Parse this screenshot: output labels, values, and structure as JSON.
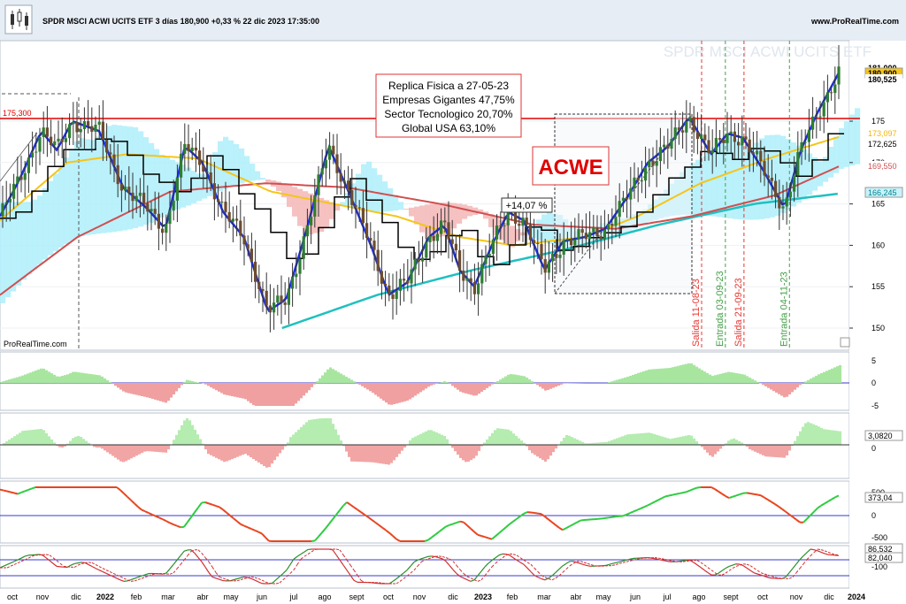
{
  "header": {
    "title": "SPDR MSCI ACWI UCITS ETF 3 días 180,900 +0,33 % 22 dic 2023 17:35:00",
    "site": "www.ProRealTime.com",
    "watermark": "SPDR MSCI ACWI UCITS ETF",
    "footer_brand": "ProRealTime.com"
  },
  "annotations": {
    "info_box": [
      "Replica Fisica a 27-05-23",
      "Empresas Gigantes 47,75%",
      "Sector Tecnologico 20,70%",
      "Global USA 63,10%"
    ],
    "ticker_label": "ACWE",
    "gain_label": "+14,07 %",
    "resistance_label": "175,300",
    "vlines": [
      {
        "label": "Salida 11-08-23",
        "color": "#e53935",
        "date": "2023-08-11"
      },
      {
        "label": "Entrada 03-09-23",
        "color": "#43a047",
        "date": "2023-09-03"
      },
      {
        "label": "Salida 21-09-23",
        "color": "#e53935",
        "date": "2023-09-21"
      },
      {
        "label": "Entrada 04-11-23",
        "color": "#43a047",
        "date": "2023-11-04"
      }
    ]
  },
  "price_axis": {
    "ticks": [
      "150",
      "155",
      "160",
      "165",
      "170",
      "175"
    ],
    "labels": [
      {
        "text": "181,000",
        "color": "#000000",
        "bg": "#ffffff"
      },
      {
        "text": "180,900",
        "color": "#000000",
        "bg": "#f5c518"
      },
      {
        "text": "180,525",
        "color": "#000000",
        "bg": "#ffffff"
      },
      {
        "text": "173,097",
        "color": "#f5b400",
        "bg": "#ffffff"
      },
      {
        "text": "172,625",
        "color": "#000000",
        "bg": "#ffffff"
      },
      {
        "text": "169,550",
        "color": "#d05050",
        "bg": "#ffffff"
      },
      {
        "text": "166,245",
        "color": "#00838f",
        "bg": "#c9f3fb"
      }
    ]
  },
  "panel2_axis": {
    "ticks": [
      "5",
      "0",
      "-5"
    ]
  },
  "panel3_axis": {
    "ticks": [
      "0"
    ],
    "labels": [
      "3,0820"
    ]
  },
  "panel4_axis": {
    "ticks": [
      "500",
      "0",
      "-500"
    ],
    "labels": [
      "373,04"
    ]
  },
  "panel5_axis": {
    "ticks": [
      "100",
      "-100"
    ],
    "labels": [
      "86,532",
      "82,040"
    ]
  },
  "x_axis": {
    "labels": [
      {
        "text": "oct",
        "bold": false
      },
      {
        "text": "nov",
        "bold": false
      },
      {
        "text": "dic",
        "bold": false
      },
      {
        "text": "2022",
        "bold": true
      },
      {
        "text": "feb",
        "bold": false
      },
      {
        "text": "mar",
        "bold": false
      },
      {
        "text": "abr",
        "bold": false
      },
      {
        "text": "may",
        "bold": false
      },
      {
        "text": "jun",
        "bold": false
      },
      {
        "text": "jul",
        "bold": false
      },
      {
        "text": "ago",
        "bold": false
      },
      {
        "text": "sept",
        "bold": false
      },
      {
        "text": "oct",
        "bold": false
      },
      {
        "text": "nov",
        "bold": false
      },
      {
        "text": "dic",
        "bold": false
      },
      {
        "text": "2023",
        "bold": true
      },
      {
        "text": "feb",
        "bold": false
      },
      {
        "text": "mar",
        "bold": false
      },
      {
        "text": "abr",
        "bold": false
      },
      {
        "text": "may",
        "bold": false
      },
      {
        "text": "jun",
        "bold": false
      },
      {
        "text": "jul",
        "bold": false
      },
      {
        "text": "ago",
        "bold": false
      },
      {
        "text": "sept",
        "bold": false
      },
      {
        "text": "oct",
        "bold": false
      },
      {
        "text": "nov",
        "bold": false
      },
      {
        "text": "dic",
        "bold": false
      },
      {
        "text": "2024",
        "bold": true
      }
    ]
  },
  "colors": {
    "candle_up": "#2e7d32",
    "candle_down": "#6d4c2f",
    "fast_ma": "#1f2fd0",
    "mid_ma": "#000000",
    "yellow_ma": "#f5c518",
    "red_ma": "#d05050",
    "teal_ma": "#20c0c0",
    "cloud_bull": "#aeeefa",
    "cloud_bear": "#f3b6b6",
    "resistance": "#e00000"
  },
  "chart_data": {
    "type": "candlestick",
    "title": "SPDR MSCI ACWI UCITS ETF 3 días",
    "last": 180.9,
    "change_pct": 0.33,
    "resistance": 175.3,
    "gain_pct": 14.07,
    "price_range": [
      147,
      183
    ],
    "close_trend": [
      [
        "2021-10-01",
        163.5
      ],
      [
        "2021-10-20",
        168.0
      ],
      [
        "2021-11-10",
        173.8
      ],
      [
        "2021-11-25",
        171.5
      ],
      [
        "2021-12-10",
        175.0
      ],
      [
        "2022-01-05",
        173.8
      ],
      [
        "2022-01-28",
        167.0
      ],
      [
        "2022-02-20",
        164.5
      ],
      [
        "2022-03-10",
        162.0
      ],
      [
        "2022-03-29",
        172.0
      ],
      [
        "2022-04-15",
        170.0
      ],
      [
        "2022-05-05",
        164.0
      ],
      [
        "2022-05-25",
        161.0
      ],
      [
        "2022-06-17",
        152.0
      ],
      [
        "2022-07-05",
        153.5
      ],
      [
        "2022-07-25",
        162.0
      ],
      [
        "2022-08-15",
        172.0
      ],
      [
        "2022-09-05",
        166.0
      ],
      [
        "2022-09-25",
        160.0
      ],
      [
        "2022-10-12",
        154.0
      ],
      [
        "2022-10-30",
        155.5
      ],
      [
        "2022-11-20",
        161.0
      ],
      [
        "2022-12-05",
        162.5
      ],
      [
        "2022-12-20",
        157.0
      ],
      [
        "2023-01-03",
        155.0
      ],
      [
        "2023-01-20",
        160.0
      ],
      [
        "2023-02-05",
        164.0
      ],
      [
        "2023-02-20",
        163.0
      ],
      [
        "2023-03-12",
        157.0
      ],
      [
        "2023-03-30",
        160.5
      ],
      [
        "2023-04-20",
        161.0
      ],
      [
        "2023-05-10",
        162.0
      ],
      [
        "2023-06-01",
        166.0
      ],
      [
        "2023-06-20",
        170.0
      ],
      [
        "2023-07-10",
        172.0
      ],
      [
        "2023-07-30",
        175.5
      ],
      [
        "2023-08-20",
        171.0
      ],
      [
        "2023-09-05",
        173.5
      ],
      [
        "2023-09-20",
        173.0
      ],
      [
        "2023-10-10",
        169.0
      ],
      [
        "2023-10-30",
        164.5
      ],
      [
        "2023-11-15",
        171.5
      ],
      [
        "2023-12-01",
        176.0
      ],
      [
        "2023-12-22",
        180.9
      ]
    ],
    "yellow_ma": [
      [
        "2021-10-01",
        163.0
      ],
      [
        "2021-12-05",
        170.0
      ],
      [
        "2022-02-01",
        171.0
      ],
      [
        "2022-04-10",
        170.5
      ],
      [
        "2022-06-20",
        166.5
      ],
      [
        "2022-08-20",
        165.0
      ],
      [
        "2022-10-20",
        163.5
      ],
      [
        "2022-12-20",
        161.0
      ],
      [
        "2023-02-10",
        160.0
      ],
      [
        "2023-04-20",
        161.0
      ],
      [
        "2023-06-10",
        163.5
      ],
      [
        "2023-08-10",
        167.5
      ],
      [
        "2023-10-15",
        170.5
      ],
      [
        "2023-12-22",
        173.1
      ]
    ],
    "red_ma": [
      [
        "2021-10-01",
        154.0
      ],
      [
        "2021-12-15",
        161.0
      ],
      [
        "2022-03-15",
        166.5
      ],
      [
        "2022-06-15",
        167.5
      ],
      [
        "2022-09-01",
        167.0
      ],
      [
        "2022-12-01",
        165.0
      ],
      [
        "2023-03-01",
        162.5
      ],
      [
        "2023-05-20",
        162.0
      ],
      [
        "2023-08-01",
        163.5
      ],
      [
        "2023-10-20",
        166.0
      ],
      [
        "2023-12-22",
        169.55
      ]
    ],
    "teal_ma": [
      [
        "2022-07-01",
        150.0
      ],
      [
        "2022-10-01",
        154.0
      ],
      [
        "2023-01-01",
        157.0
      ],
      [
        "2023-04-01",
        159.5
      ],
      [
        "2023-07-01",
        162.5
      ],
      [
        "2023-10-01",
        165.0
      ],
      [
        "2023-12-22",
        166.245
      ]
    ]
  }
}
